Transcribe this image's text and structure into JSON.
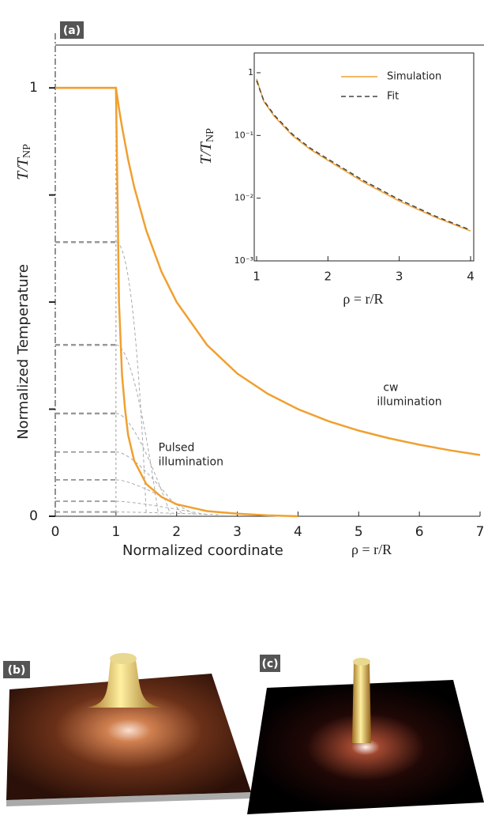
{
  "chart_data": [
    {
      "type": "line",
      "panel_label": "(a)",
      "xlabel": "Normalized coordinate",
      "xlabel_symbol": "ρ = r/R",
      "ylabel": "Normalized Temperature",
      "ylabel_symbol": "T/T",
      "ylabel_subscript": "NP",
      "xlim": [
        0,
        7
      ],
      "ylim": [
        0,
        1.1
      ],
      "xticks": [
        0,
        1,
        2,
        3,
        4,
        5,
        6,
        7
      ],
      "yticks": [
        0,
        1
      ],
      "yminor_ticks": [
        0.25,
        0.5,
        0.75
      ],
      "series": [
        {
          "name": "cw",
          "color": "#f0a030",
          "x": [
            0,
            1,
            1.05,
            1.1,
            1.2,
            1.3,
            1.5,
            1.75,
            2,
            2.5,
            3,
            3.5,
            4,
            4.5,
            5,
            5.5,
            6,
            6.5,
            7
          ],
          "values": [
            1,
            1,
            0.952,
            0.909,
            0.833,
            0.769,
            0.667,
            0.571,
            0.5,
            0.4,
            0.333,
            0.286,
            0.25,
            0.222,
            0.2,
            0.182,
            0.167,
            0.154,
            0.143
          ]
        },
        {
          "name": "Pulsed",
          "color": "#f0a030",
          "x": [
            0,
            1,
            1.05,
            1.1,
            1.15,
            1.2,
            1.3,
            1.5,
            1.75,
            2,
            2.5,
            3,
            3.5,
            4
          ],
          "values": [
            1,
            1,
            0.5,
            0.33,
            0.25,
            0.19,
            0.13,
            0.075,
            0.045,
            0.028,
            0.012,
            0.006,
            0.002,
            0
          ]
        }
      ],
      "snapshot_levels": [
        0.64,
        0.4,
        0.24,
        0.15,
        0.085,
        0.035,
        0.01
      ],
      "annotations": [
        [
          "cw",
          "illumination"
        ],
        [
          "Pulsed",
          "illumination"
        ]
      ]
    },
    {
      "type": "line",
      "log_y": true,
      "xlabel": "ρ = r/R",
      "ylabel_symbol": "T/T",
      "ylabel_subscript": "NP",
      "xlim": [
        1,
        4
      ],
      "ylim": [
        0.001,
        1
      ],
      "xticks": [
        1,
        2,
        3,
        4
      ],
      "yticks": [
        {
          "value": 0.001,
          "label": "10⁻³"
        },
        {
          "value": 0.01,
          "label": "10⁻²"
        },
        {
          "value": 0.1,
          "label": "10⁻¹"
        },
        1
      ],
      "legend": "upper right",
      "series": [
        {
          "name": "Simulation",
          "color": "#f0a030",
          "dash": false,
          "x": [
            1,
            1.1,
            1.25,
            1.5,
            1.75,
            2,
            2.5,
            3,
            3.5,
            4
          ],
          "values": [
            0.8,
            0.35,
            0.2,
            0.1,
            0.06,
            0.04,
            0.018,
            0.009,
            0.005,
            0.003
          ]
        },
        {
          "name": "Fit",
          "color": "#444444",
          "dash": true,
          "x": [
            1,
            1.1,
            1.25,
            1.5,
            1.75,
            2,
            2.5,
            3,
            3.5,
            4
          ],
          "values": [
            0.75,
            0.36,
            0.21,
            0.105,
            0.063,
            0.042,
            0.019,
            0.0095,
            0.0052,
            0.0031
          ]
        }
      ]
    }
  ],
  "images": [
    {
      "label": "(b)"
    },
    {
      "label": "(c)"
    }
  ]
}
